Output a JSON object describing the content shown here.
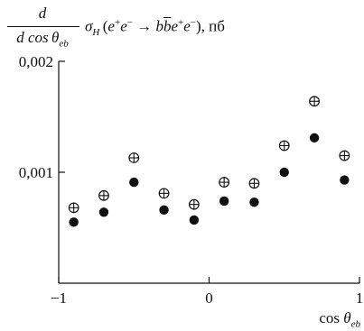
{
  "chart_data": {
    "type": "scatter",
    "title": {
      "frac_num": "d",
      "frac_den_cos": "d cos",
      "frac_den_theta": "θ",
      "frac_den_sub": "eb",
      "sigma": "σ",
      "sigma_sub": "H",
      "process_open": "(",
      "e1": "e",
      "e1_sup": "+",
      "e2": "e",
      "e2_sup": "−",
      "arrow": " → ",
      "b1": "b",
      "b2": "b",
      "e3": "e",
      "e3_sup": "+",
      "e4": "e",
      "e4_sup": "−",
      "process_close": "), ",
      "unit": "пб"
    },
    "xlabel": {
      "cos": "cos ",
      "theta": "θ",
      "sub": "eb"
    },
    "xlim": [
      -1,
      1
    ],
    "ylim": [
      0,
      0.002
    ],
    "x_ticks": [
      {
        "value": -1,
        "label": "−1"
      },
      {
        "value": 0,
        "label": "0"
      },
      {
        "value": 1,
        "label": "1"
      }
    ],
    "y_ticks": [
      {
        "value": 0.001,
        "label": "0,001"
      },
      {
        "value": 0.002,
        "label": "0,002"
      }
    ],
    "x": [
      -0.9,
      -0.7,
      -0.5,
      -0.3,
      -0.1,
      0.1,
      0.3,
      0.5,
      0.7,
      0.9
    ],
    "series": [
      {
        "marker": "circle-plus",
        "values": [
          0.00068,
          0.00079,
          0.00113,
          0.00081,
          0.00071,
          0.00091,
          0.0009,
          0.00124,
          0.00164,
          0.00115
        ]
      },
      {
        "marker": "filled-circle",
        "values": [
          0.00055,
          0.00064,
          0.00091,
          0.00066,
          0.00057,
          0.00074,
          0.00073,
          0.001,
          0.00131,
          0.00093
        ]
      }
    ],
    "grid": false,
    "legend": "none",
    "colors": {
      "axis": "#111111",
      "marker": "#111111",
      "background": "#ffffff"
    }
  }
}
